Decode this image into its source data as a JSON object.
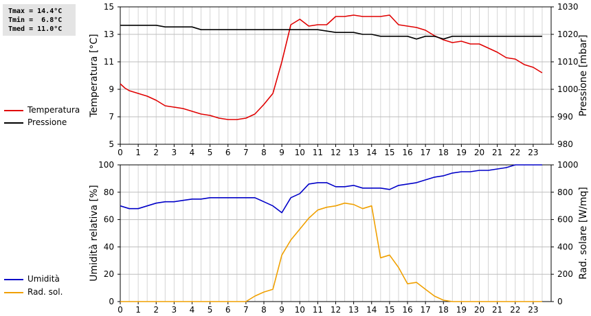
{
  "stats": {
    "tmax": "Tmax = 14.4°C",
    "tmin": "Tmin =  6.8°C",
    "tmed": "Tmed = 11.0°C"
  },
  "chart_data": [
    {
      "type": "line",
      "x_ticks": [
        "0",
        "1",
        "2",
        "3",
        "4",
        "5",
        "6",
        "7",
        "8",
        "9",
        "10",
        "11",
        "12",
        "13",
        "14",
        "15",
        "16",
        "17",
        "18",
        "19",
        "20",
        "21",
        "22",
        "23"
      ],
      "xlim": [
        0,
        24
      ],
      "ylabel_left": "Temperatura [°C]",
      "ylabel_right": "Pressione [mbar]",
      "ylim_left": [
        5,
        15
      ],
      "ylim_right": [
        980,
        1030
      ],
      "yticks_left": [
        5,
        7,
        9,
        11,
        13,
        15
      ],
      "yticks_right": [
        980,
        990,
        1000,
        1010,
        1020,
        1030
      ],
      "grid": true,
      "legend_position": "left",
      "series": [
        {
          "name": "Temperatura",
          "axis": "left",
          "color": "#e00000",
          "x": [
            0,
            0.25,
            0.5,
            1,
            1.5,
            2,
            2.5,
            3,
            3.5,
            4,
            4.5,
            5,
            5.5,
            6,
            6.5,
            7,
            7.5,
            8,
            8.5,
            9,
            9.5,
            10,
            10.5,
            11,
            11.5,
            12,
            12.5,
            13,
            13.5,
            14,
            14.5,
            15,
            15.5,
            16,
            16.5,
            17,
            17.5,
            18,
            18.5,
            19,
            19.5,
            20,
            20.5,
            21,
            21.5,
            22,
            22.5,
            23,
            23.5
          ],
          "values": [
            9.4,
            9.1,
            8.9,
            8.7,
            8.5,
            8.2,
            7.8,
            7.7,
            7.6,
            7.4,
            7.2,
            7.1,
            6.9,
            6.8,
            6.8,
            6.9,
            7.2,
            7.9,
            8.7,
            11.0,
            13.7,
            14.1,
            13.6,
            13.7,
            13.7,
            14.3,
            14.3,
            14.4,
            14.3,
            14.3,
            14.3,
            14.4,
            13.7,
            13.6,
            13.5,
            13.3,
            12.9,
            12.6,
            12.4,
            12.5,
            12.3,
            12.3,
            12.0,
            11.7,
            11.3,
            11.2,
            10.8,
            10.6,
            10.2
          ]
        },
        {
          "name": "Pressione",
          "axis": "right",
          "color": "#000000",
          "x": [
            0,
            1,
            2,
            2.5,
            3,
            4,
            4.5,
            5,
            6,
            7,
            8,
            9,
            10,
            11,
            12,
            13,
            13.5,
            14,
            14.5,
            15,
            16,
            16.5,
            17,
            17.5,
            18,
            18.5,
            19,
            20,
            21,
            22,
            23,
            23.5
          ],
          "values": [
            1023.3,
            1023.3,
            1023.3,
            1022.7,
            1022.7,
            1022.7,
            1021.7,
            1021.7,
            1021.7,
            1021.7,
            1021.7,
            1021.7,
            1021.7,
            1021.7,
            1020.7,
            1020.7,
            1020.0,
            1020.0,
            1019.3,
            1019.3,
            1019.3,
            1018.3,
            1019.3,
            1019.3,
            1018.3,
            1019.3,
            1019.3,
            1019.3,
            1019.3,
            1019.3,
            1019.3,
            1019.3
          ]
        }
      ]
    },
    {
      "type": "line",
      "x_ticks": [
        "0",
        "1",
        "2",
        "3",
        "4",
        "5",
        "6",
        "7",
        "8",
        "9",
        "10",
        "11",
        "12",
        "13",
        "14",
        "15",
        "16",
        "17",
        "18",
        "19",
        "20",
        "21",
        "22",
        "23"
      ],
      "xlim": [
        0,
        24
      ],
      "ylabel_left": "Umidità relativa [%]",
      "ylabel_right": "Rad. solare [W/mq]",
      "ylim_left": [
        0,
        100
      ],
      "ylim_right": [
        0,
        1000
      ],
      "yticks_left": [
        0,
        20,
        40,
        60,
        80,
        100
      ],
      "yticks_right": [
        0,
        200,
        400,
        600,
        800,
        1000
      ],
      "grid": true,
      "legend_position": "left",
      "series": [
        {
          "name": "Umidità",
          "axis": "left",
          "color": "#0000c8",
          "x": [
            0,
            0.5,
            1,
            1.5,
            2,
            2.5,
            3,
            3.5,
            4,
            4.5,
            5,
            5.5,
            6,
            6.5,
            7,
            7.5,
            8,
            8.5,
            9,
            9.5,
            10,
            10.5,
            11,
            11.5,
            12,
            12.5,
            13,
            13.5,
            14,
            14.5,
            15,
            15.5,
            16,
            16.5,
            17,
            17.5,
            18,
            18.5,
            19,
            19.5,
            20,
            20.5,
            21,
            21.5,
            22,
            22.5,
            23,
            23.5
          ],
          "values": [
            70,
            68,
            68,
            70,
            72,
            73,
            73,
            74,
            75,
            75,
            76,
            76,
            76,
            76,
            76,
            76,
            73,
            70,
            65,
            76,
            79,
            86,
            87,
            87,
            84,
            84,
            85,
            83,
            83,
            83,
            82,
            85,
            86,
            87,
            89,
            91,
            92,
            94,
            95,
            95,
            96,
            96,
            97,
            98,
            100,
            100,
            100,
            100
          ]
        },
        {
          "name": "Rad. sol.",
          "axis": "right",
          "color": "#f0a000",
          "x": [
            0,
            1,
            2,
            3,
            4,
            5,
            6,
            7,
            7.5,
            8,
            8.5,
            9,
            9.5,
            10,
            10.5,
            11,
            11.5,
            12,
            12.5,
            13,
            13.5,
            14,
            14.5,
            15,
            15.5,
            16,
            16.5,
            17,
            17.5,
            18,
            18.5,
            19,
            20,
            21,
            22,
            23,
            23.5
          ],
          "values": [
            0,
            0,
            0,
            0,
            0,
            0,
            0,
            0,
            40,
            70,
            90,
            340,
            450,
            530,
            610,
            670,
            690,
            700,
            720,
            710,
            680,
            700,
            320,
            340,
            250,
            130,
            140,
            90,
            40,
            10,
            0,
            0,
            0,
            0,
            0,
            0,
            0
          ]
        }
      ]
    }
  ]
}
